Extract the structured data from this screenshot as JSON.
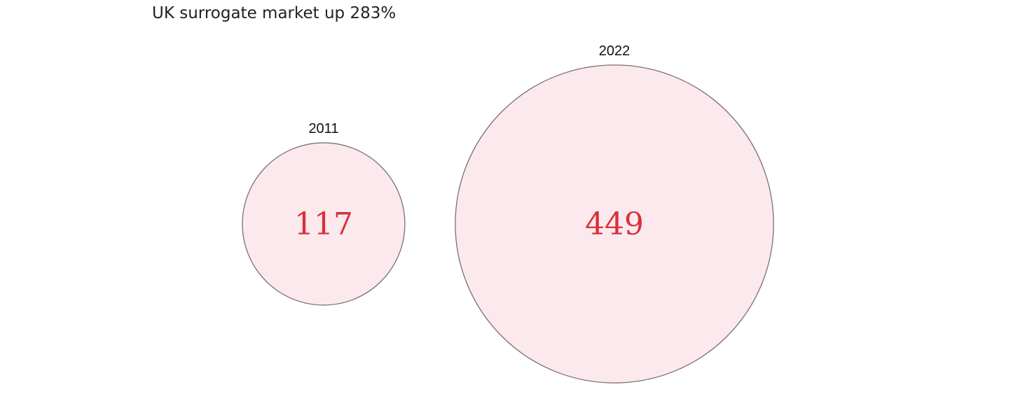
{
  "chart_data": {
    "type": "bubble",
    "title": "UK surrogate market up 283%",
    "categories": [
      "2011",
      "2022"
    ],
    "values": [
      117,
      449
    ],
    "color": "#fbe9ed",
    "edge_color": "#7d6f70",
    "label_color": "#d9303a"
  }
}
